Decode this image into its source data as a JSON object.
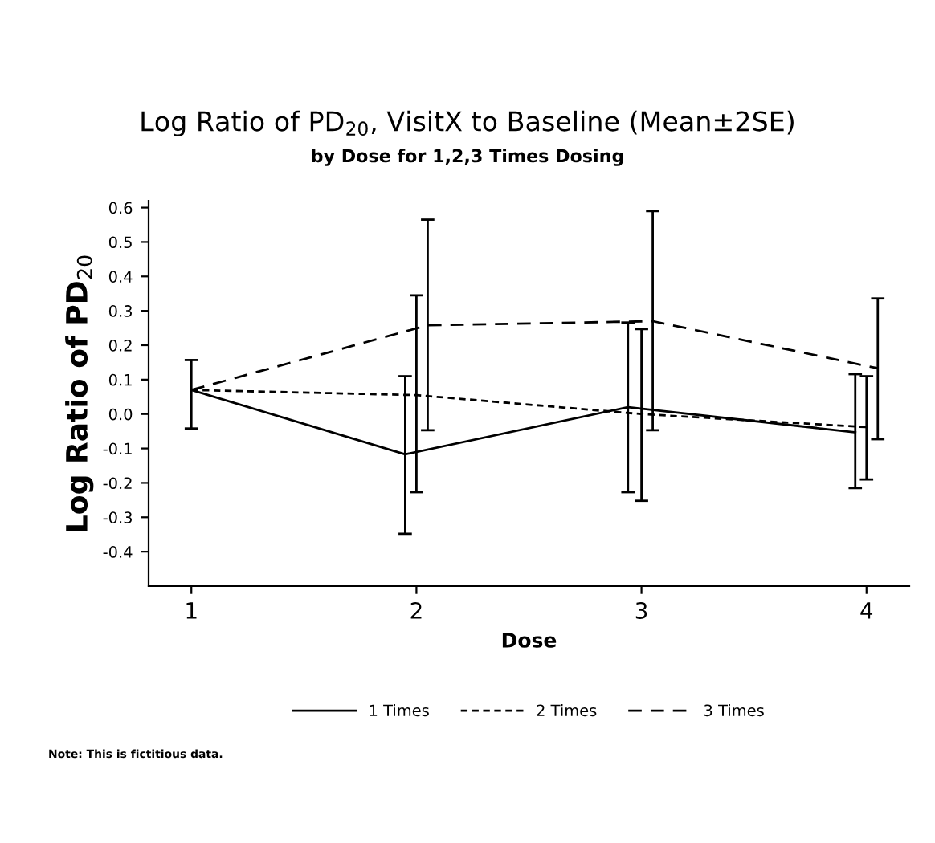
{
  "chart_data": {
    "type": "line",
    "title": "Log Ratio of PD$_{20}$, VisitX to Baseline (Mean±2SE)",
    "subtitle": "by Dose for 1,2,3 Times Dosing",
    "xlabel": "Dose",
    "ylabel": "Log Ratio of PD$_{20}$",
    "series": [
      {
        "name": "1 Times",
        "color": "#000000",
        "line_style": "solid",
        "x": [
          1,
          1.95,
          2.94,
          3.95
        ],
        "values": [
          0.07,
          -0.117,
          0.02,
          -0.053
        ],
        "errors": [
          [
            -0.042,
            0.157
          ],
          [
            -0.348,
            0.11
          ],
          [
            -0.227,
            0.266
          ],
          [
            -0.215,
            0.116
          ]
        ]
      },
      {
        "name": "2 Times",
        "color": "#000000",
        "line_style": "dotted",
        "x": [
          1,
          2,
          3,
          4
        ],
        "values": [
          0.07,
          0.055,
          0.0,
          -0.038
        ],
        "errors": [
          null,
          [
            -0.227,
            0.345
          ],
          [
            -0.252,
            0.247
          ],
          [
            -0.19,
            0.11
          ]
        ]
      },
      {
        "name": "3 Times",
        "color": "#000000",
        "line_style": "dashed",
        "x": [
          1,
          2.05,
          3.05,
          4.05
        ],
        "values": [
          0.07,
          0.258,
          0.27,
          0.133
        ],
        "errors": [
          null,
          [
            -0.047,
            0.565
          ],
          [
            -0.047,
            0.59
          ],
          [
            -0.073,
            0.336
          ]
        ]
      }
    ],
    "xlim": [
      0.81,
      4.19
    ],
    "xticks": [
      1,
      2,
      3,
      4
    ],
    "ylim": [
      -0.5,
      0.62
    ],
    "yticks": [
      {
        "value": -0.4,
        "label": "-0.4"
      },
      {
        "value": -0.3,
        "label": "-0.3"
      },
      {
        "value": -0.2,
        "label": "-0.2"
      },
      {
        "value": -0.1,
        "label": "-0.1"
      },
      {
        "value": 0,
        "label": "0.0"
      },
      {
        "value": 0.1,
        "label": "0.1"
      },
      {
        "value": 0.2,
        "label": "0.2"
      },
      {
        "value": 0.3,
        "label": "0.3"
      },
      {
        "value": 0.4,
        "label": "0.4"
      },
      {
        "value": 0.5,
        "label": "0.5"
      },
      {
        "value": 0.6,
        "label": "0.6"
      }
    ],
    "grid": false,
    "legend": "bottom",
    "marker": "none",
    "annotations": [
      "Note: This is fictitious data."
    ]
  }
}
